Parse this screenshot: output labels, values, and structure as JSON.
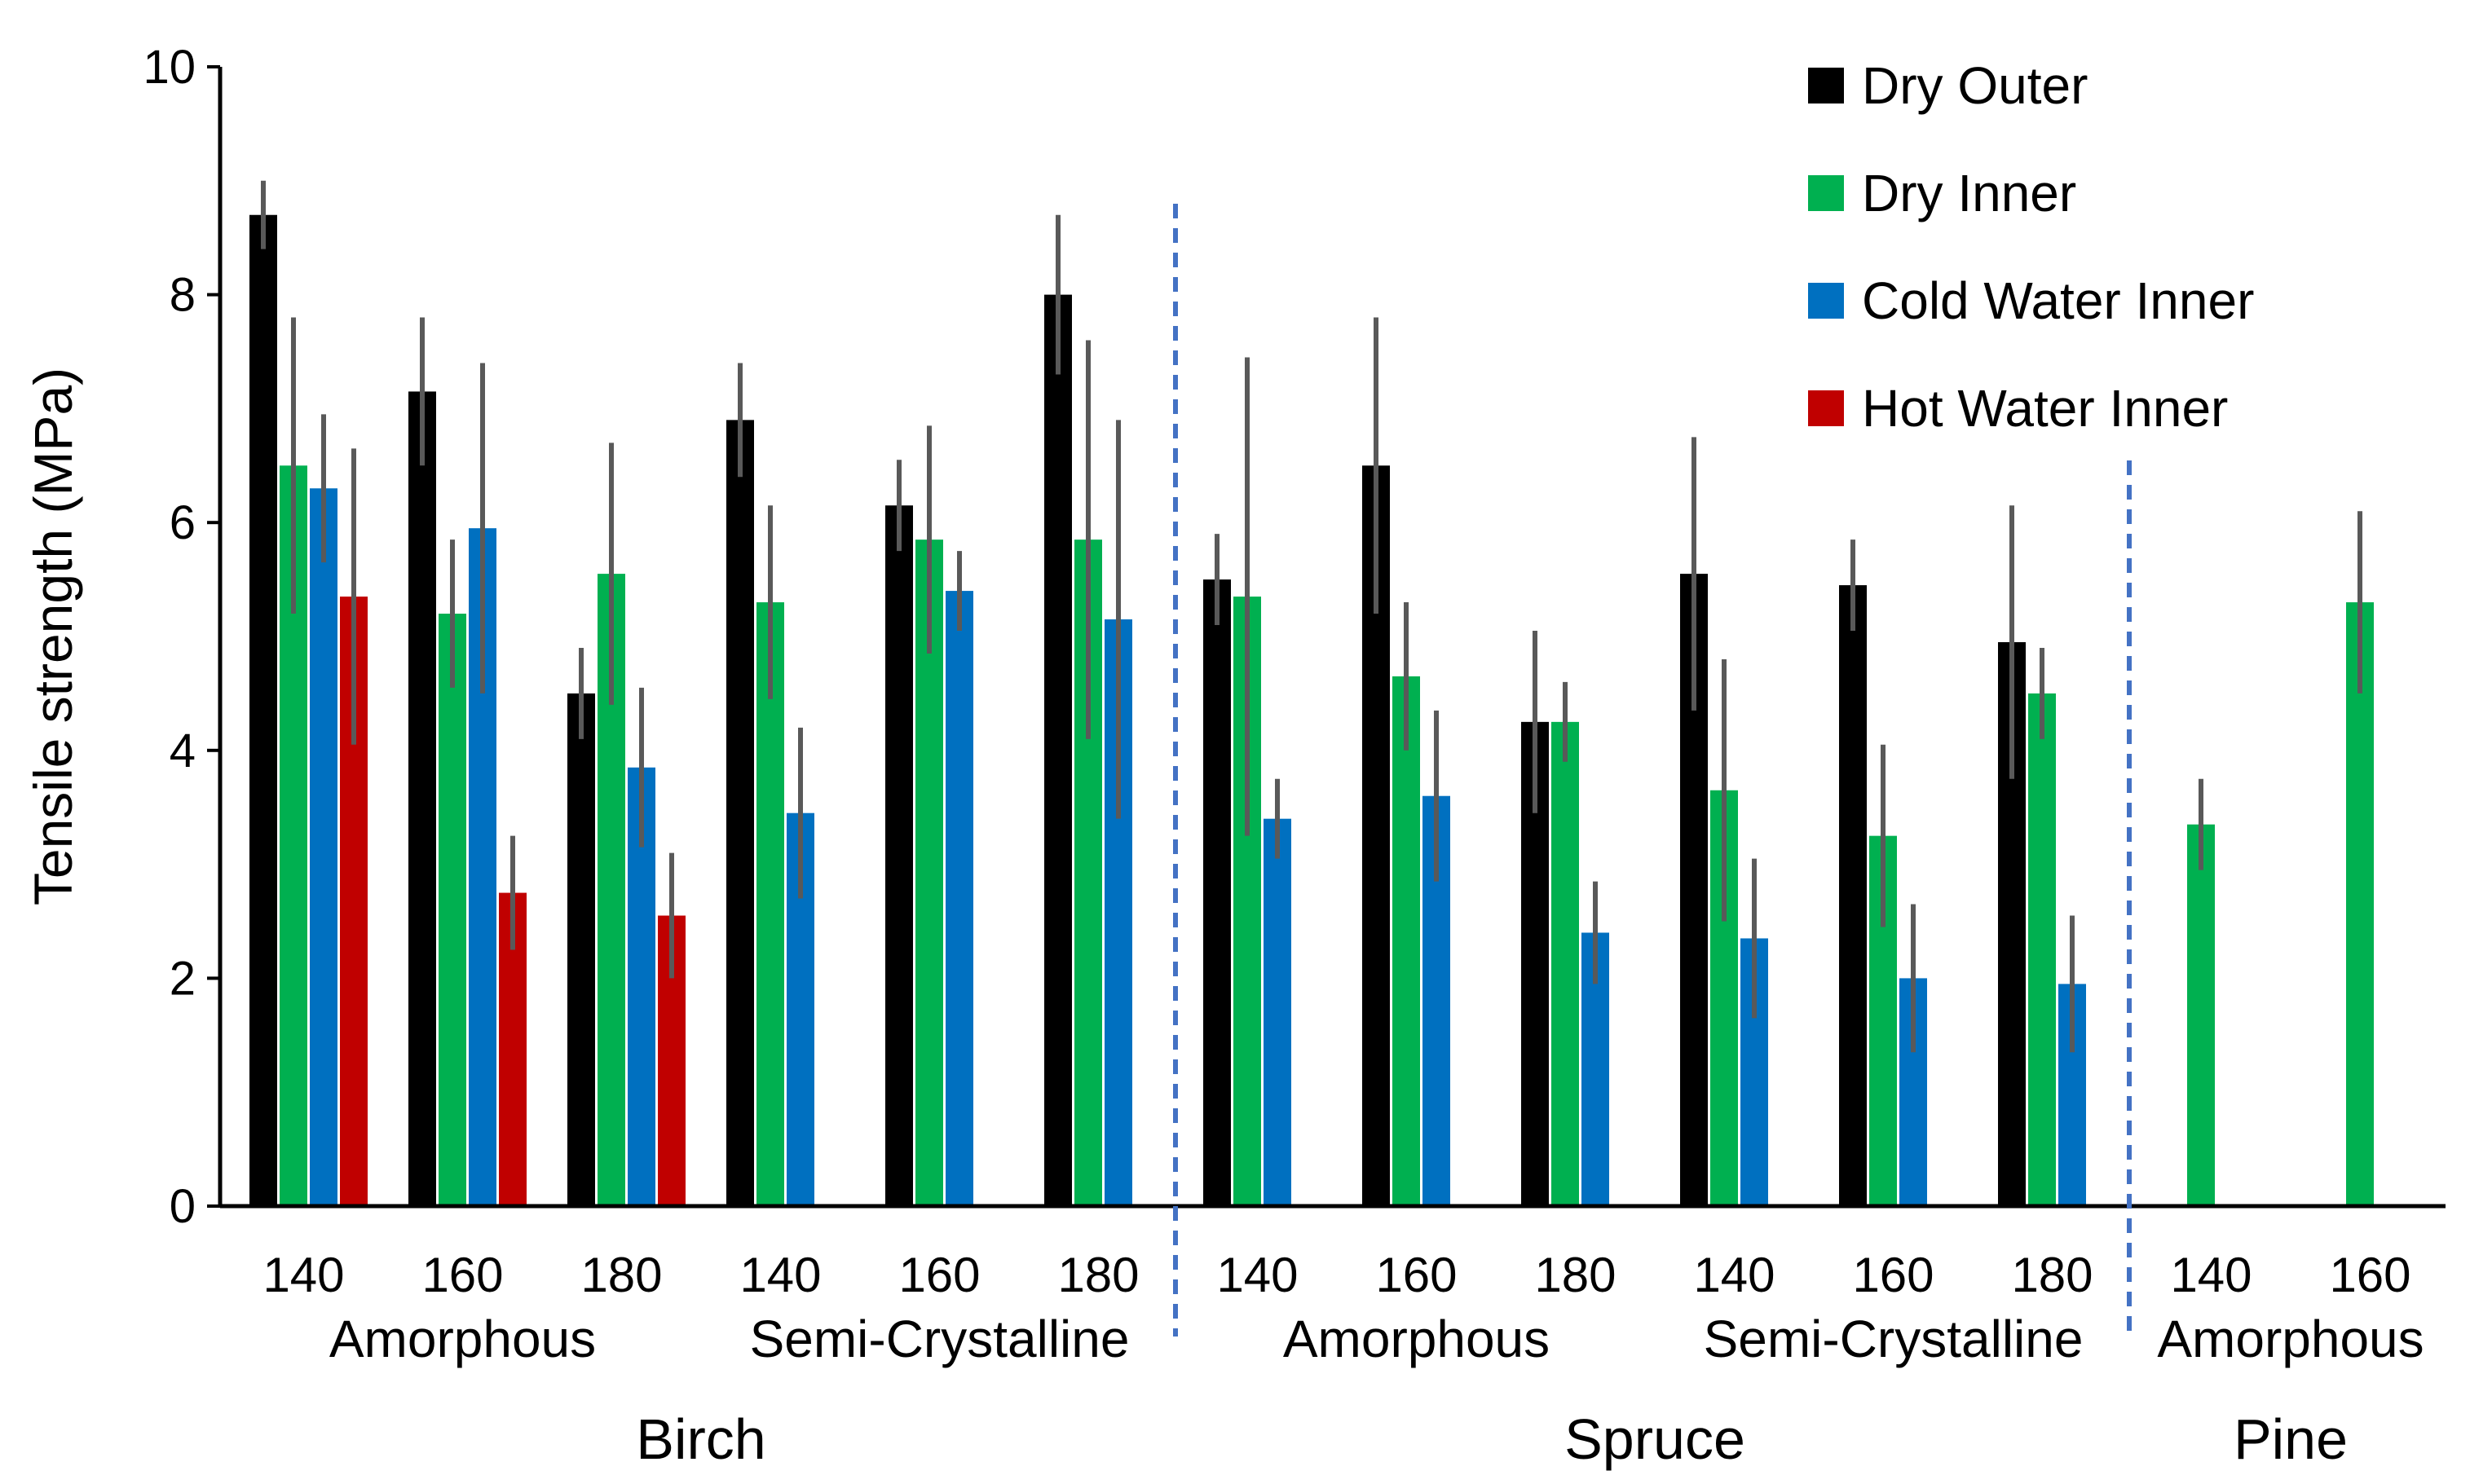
{
  "chart_data": {
    "type": "bar",
    "title": "",
    "ylabel": "Tensile strength (MPa)",
    "xlabel": "",
    "ylim": [
      0,
      10
    ],
    "yticks": [
      0,
      2,
      4,
      6,
      8,
      10
    ],
    "legend_position": "top-right",
    "colors": {
      "Dry Outer": "#000000",
      "Dry Inner": "#00b050",
      "Cold Water Inner": "#0070c0",
      "Hot Water Inner": "#c00000",
      "error_bar": "#595959",
      "divider": "#4472c4"
    },
    "series": [
      {
        "name": "Dry Outer"
      },
      {
        "name": "Dry Inner"
      },
      {
        "name": "Cold Water Inner"
      },
      {
        "name": "Hot Water Inner"
      }
    ],
    "groups": [
      {
        "temp": "140",
        "values": [
          8.7,
          6.5,
          6.3,
          5.35
        ],
        "errors": [
          0.3,
          1.3,
          0.65,
          1.3
        ]
      },
      {
        "temp": "160",
        "values": [
          7.15,
          5.2,
          5.95,
          2.75
        ],
        "errors": [
          0.65,
          0.65,
          1.45,
          0.5
        ]
      },
      {
        "temp": "180",
        "values": [
          4.5,
          5.55,
          3.85,
          2.55
        ],
        "errors": [
          0.4,
          1.15,
          0.7,
          0.55
        ]
      },
      {
        "temp": "140",
        "values": [
          6.9,
          5.3,
          3.45,
          null
        ],
        "errors": [
          0.5,
          0.85,
          0.75,
          null
        ]
      },
      {
        "temp": "160",
        "values": [
          6.15,
          5.85,
          5.4,
          null
        ],
        "errors": [
          0.4,
          1.0,
          0.35,
          null
        ]
      },
      {
        "temp": "180",
        "values": [
          8.0,
          5.85,
          5.15,
          null
        ],
        "errors": [
          0.7,
          1.75,
          1.75,
          null
        ]
      },
      {
        "temp": "140",
        "values": [
          5.5,
          5.35,
          3.4,
          null
        ],
        "errors": [
          0.4,
          2.1,
          0.35,
          null
        ]
      },
      {
        "temp": "160",
        "values": [
          6.5,
          4.65,
          3.6,
          null
        ],
        "errors": [
          1.3,
          0.65,
          0.75,
          null
        ]
      },
      {
        "temp": "180",
        "values": [
          4.25,
          4.25,
          2.4,
          null
        ],
        "errors": [
          0.8,
          0.35,
          0.45,
          null
        ]
      },
      {
        "temp": "140",
        "values": [
          5.55,
          3.65,
          2.35,
          null
        ],
        "errors": [
          1.2,
          1.15,
          0.7,
          null
        ]
      },
      {
        "temp": "160",
        "values": [
          5.45,
          3.25,
          2.0,
          null
        ],
        "errors": [
          0.4,
          0.8,
          0.65,
          null
        ]
      },
      {
        "temp": "180",
        "values": [
          4.95,
          4.5,
          1.95,
          null
        ],
        "errors": [
          1.2,
          0.4,
          0.6,
          null
        ]
      },
      {
        "temp": "140",
        "values": [
          null,
          3.35,
          null,
          null
        ],
        "errors": [
          null,
          0.4,
          null,
          null
        ]
      },
      {
        "temp": "160",
        "values": [
          null,
          5.3,
          null,
          null
        ],
        "errors": [
          null,
          0.8,
          null,
          null
        ]
      }
    ],
    "crystallinity_groups": [
      {
        "label": "Amorphous",
        "from": 0,
        "to": 2
      },
      {
        "label": "Semi-Crystalline",
        "from": 3,
        "to": 5
      },
      {
        "label": "Amorphous",
        "from": 6,
        "to": 8
      },
      {
        "label": "Semi-Crystalline",
        "from": 9,
        "to": 11
      },
      {
        "label": "Amorphous",
        "from": 12,
        "to": 13
      }
    ],
    "wood_groups": [
      {
        "label": "Birch",
        "from": 0,
        "to": 5
      },
      {
        "label": "Spruce",
        "from": 6,
        "to": 11
      },
      {
        "label": "Pine",
        "from": 12,
        "to": 13
      }
    ],
    "dividers_after_group": [
      5,
      11
    ]
  }
}
